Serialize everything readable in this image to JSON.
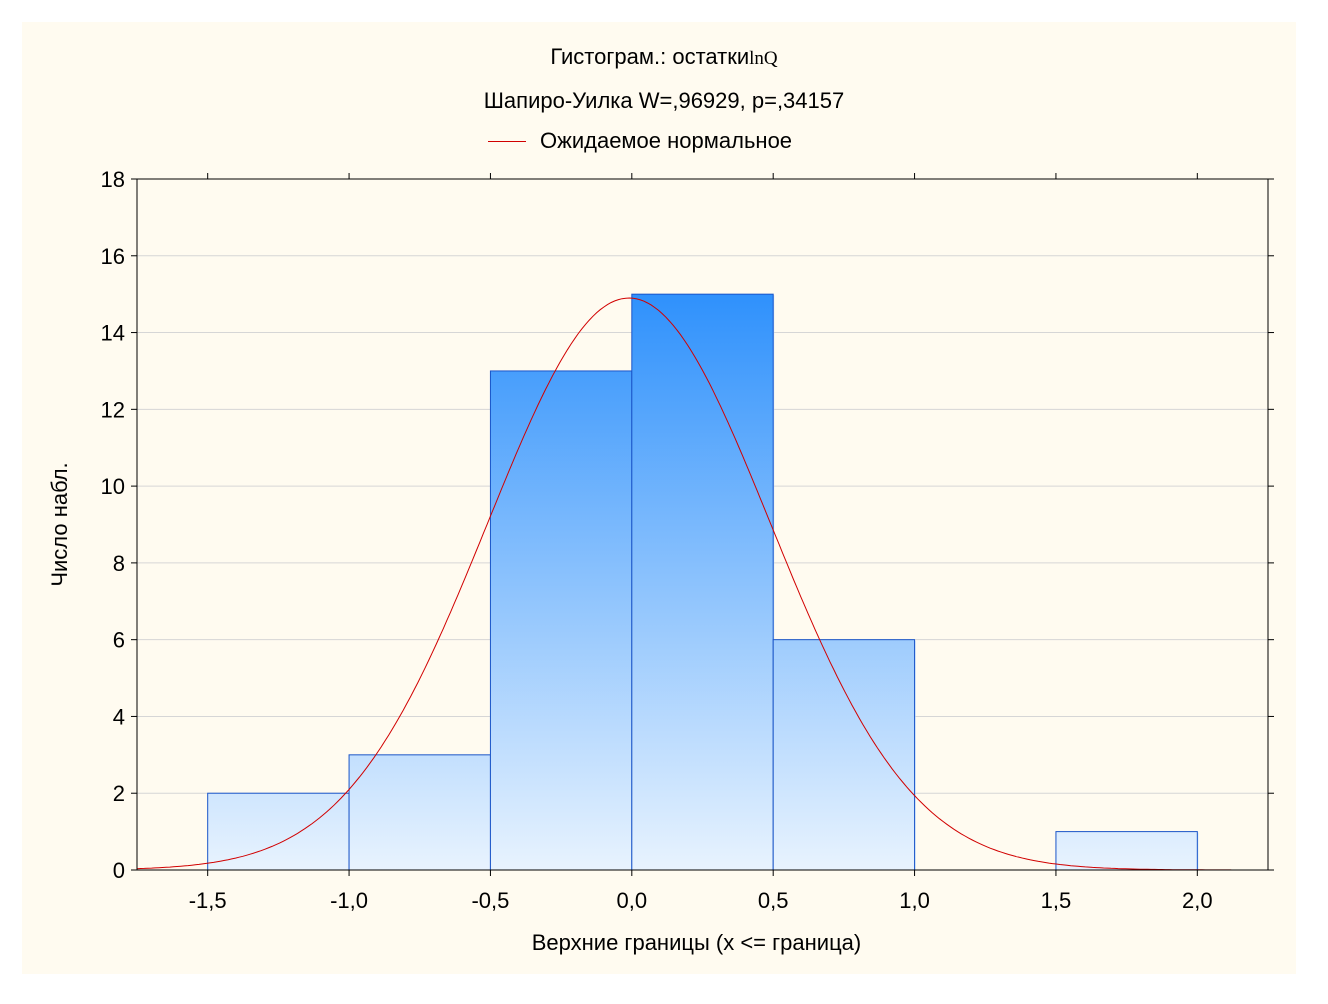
{
  "chart_data": {
    "type": "bar",
    "title": "Гистограм.: остатки",
    "title_suffix": "lnQ",
    "subtitle": "Шапиро-Уилка W=,96929, p=,34157",
    "xlabel": "Верхние границы (x <= граница)",
    "ylabel": "Число набл.",
    "legend": {
      "position": "top",
      "label": "Ожидаемое нормальное",
      "color": "#d10000"
    },
    "xlim": [
      -1.75,
      2.25
    ],
    "ylim": [
      0,
      18
    ],
    "xticks": [
      -1.5,
      -1.0,
      -0.5,
      0.0,
      0.5,
      1.0,
      1.5,
      2.0
    ],
    "xtick_labels": [
      "-1,5",
      "-1,0",
      "-0,5",
      "0,0",
      "0,5",
      "1,0",
      "1,5",
      "2,0"
    ],
    "yticks": [
      0,
      2,
      4,
      6,
      8,
      10,
      12,
      14,
      16,
      18
    ],
    "ytick_labels": [
      "0",
      "2",
      "4",
      "6",
      "8",
      "10",
      "12",
      "14",
      "16",
      "18"
    ],
    "grid": "horizontal",
    "bins": [
      {
        "from": -1.5,
        "to": -1.0,
        "count": 2
      },
      {
        "from": -1.0,
        "to": -0.5,
        "count": 3
      },
      {
        "from": -0.5,
        "to": 0.0,
        "count": 13
      },
      {
        "from": 0.0,
        "to": 0.5,
        "count": 15
      },
      {
        "from": 0.5,
        "to": 1.0,
        "count": 6
      },
      {
        "from": 1.0,
        "to": 1.5,
        "count": 0
      },
      {
        "from": 1.5,
        "to": 2.0,
        "count": 1
      }
    ],
    "normal_curve": {
      "peak": 14.9,
      "mean": -0.01,
      "sd": 0.5,
      "x_range": [
        -1.75,
        2.12
      ]
    },
    "colors": {
      "bar_top": "#2b8ffc",
      "bar_bottom": "#e8f3fe",
      "bar_edge": "#1a55c8",
      "curve": "#d10000",
      "grid": "#d6d6d6",
      "background": "#fffbf0"
    }
  }
}
